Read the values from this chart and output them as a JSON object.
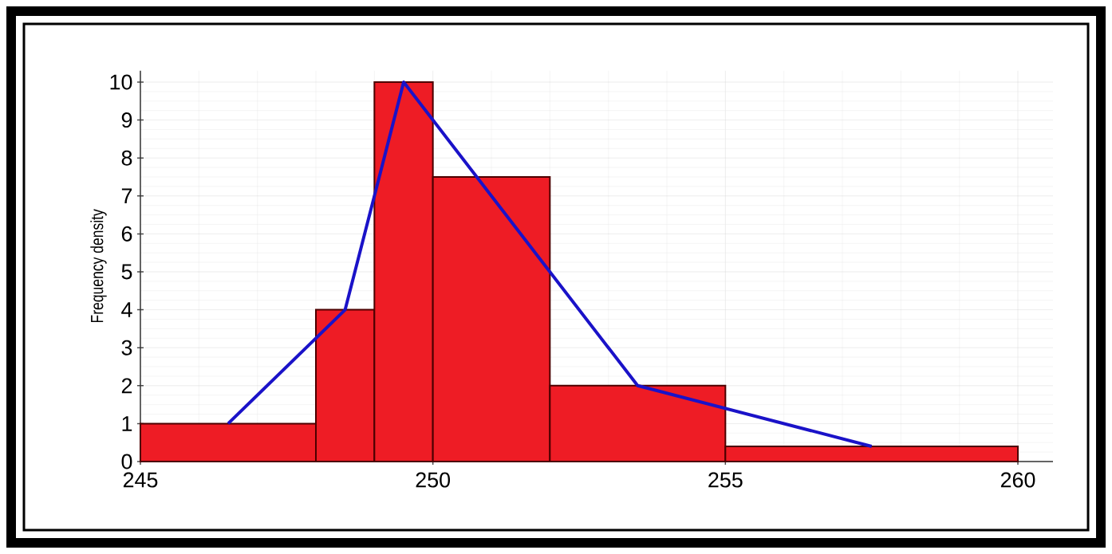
{
  "chart_data": {
    "type": "histogram",
    "ylabel": "Frequency density",
    "series": [
      {
        "bins": [
          245,
          248,
          249,
          250,
          252,
          255,
          260
        ],
        "values": [
          1,
          4,
          10,
          7.5,
          2,
          0.4
        ],
        "color": "#ee1c25"
      },
      {
        "type": "line",
        "x": [
          246.5,
          248.5,
          249.5,
          253.5,
          257.5
        ],
        "values": [
          1,
          4,
          10,
          2,
          0.4
        ],
        "color": "#1a12c8"
      }
    ],
    "xlim": [
      245,
      260.6
    ],
    "ylim": [
      0,
      10.3
    ],
    "xticks": [
      245,
      250,
      255,
      260
    ],
    "yticks": [
      0,
      1,
      2,
      3,
      4,
      5,
      6,
      7,
      8,
      9,
      10
    ],
    "grid": true
  }
}
